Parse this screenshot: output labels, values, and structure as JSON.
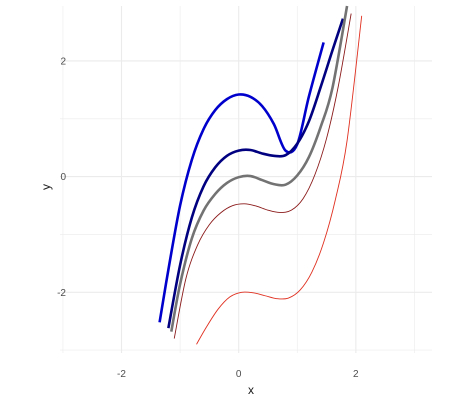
{
  "chart_data": {
    "type": "line",
    "title": "",
    "xlabel": "x",
    "ylabel": "y",
    "xlim": [
      -3.05,
      3.3
    ],
    "ylim": [
      -3.05,
      2.95
    ],
    "x_ticks": [
      -2,
      0,
      2
    ],
    "y_ticks": [
      -2,
      0,
      2
    ],
    "x_tick_labels": [
      "-2",
      "0",
      "2"
    ],
    "y_tick_labels": [
      "-2",
      "0",
      "2"
    ],
    "grid": true,
    "legend": "none",
    "background": "#ffffff",
    "grid_color": "#ebebeb",
    "series": [
      {
        "color": "#0000CD",
        "stroke_width": 2.6,
        "x": [
          -1.35,
          -1.2,
          -1.0,
          -0.8,
          -0.6,
          -0.4,
          -0.2,
          0.0,
          0.2,
          0.4,
          0.6,
          0.8,
          1.0,
          1.2,
          1.45
        ],
        "y": [
          -2.52,
          -1.61,
          -0.5,
          0.29,
          0.82,
          1.15,
          1.34,
          1.42,
          1.38,
          1.22,
          0.91,
          0.45,
          0.56,
          1.39,
          2.32
        ]
      },
      {
        "color": "#000080",
        "stroke_width": 2.6,
        "x": [
          -1.2,
          -1.0,
          -0.8,
          -0.6,
          -0.4,
          -0.2,
          0.0,
          0.2,
          0.4,
          0.6,
          0.8,
          1.0,
          1.2,
          1.4,
          1.6,
          1.78
        ],
        "y": [
          -2.62,
          -1.53,
          -0.71,
          -0.17,
          0.16,
          0.36,
          0.45,
          0.46,
          0.4,
          0.36,
          0.37,
          0.57,
          0.96,
          1.55,
          2.18,
          2.73
        ]
      },
      {
        "color": "#737373",
        "stroke_width": 2.6,
        "x": [
          -1.15,
          -1.0,
          -0.8,
          -0.6,
          -0.4,
          -0.2,
          0.0,
          0.2,
          0.4,
          0.6,
          0.8,
          1.0,
          1.2,
          1.4,
          1.6,
          1.85
        ],
        "y": [
          -2.68,
          -1.86,
          -1.07,
          -0.59,
          -0.3,
          -0.11,
          -0.01,
          0.01,
          -0.06,
          -0.13,
          -0.14,
          0.02,
          0.34,
          0.86,
          1.53,
          2.95
        ]
      },
      {
        "color": "#8B1A1A",
        "stroke_width": 0.9,
        "x": [
          -1.1,
          -0.9,
          -0.7,
          -0.5,
          -0.3,
          -0.1,
          0.1,
          0.3,
          0.5,
          0.7,
          0.9,
          1.1,
          1.3,
          1.5,
          1.7,
          1.92
        ],
        "y": [
          -2.8,
          -1.76,
          -1.18,
          -0.83,
          -0.62,
          -0.5,
          -0.47,
          -0.51,
          -0.58,
          -0.62,
          -0.58,
          -0.38,
          0.03,
          0.66,
          1.56,
          2.82
        ]
      },
      {
        "color": "#E03020",
        "stroke_width": 0.9,
        "x": [
          -0.72,
          -0.55,
          -0.35,
          -0.15,
          0.05,
          0.25,
          0.45,
          0.65,
          0.85,
          1.05,
          1.25,
          1.45,
          1.65,
          1.85,
          2.1
        ],
        "y": [
          -2.9,
          -2.6,
          -2.29,
          -2.08,
          -2.0,
          -2.01,
          -2.06,
          -2.11,
          -2.1,
          -1.96,
          -1.65,
          -1.14,
          -0.4,
          0.62,
          2.78
        ]
      }
    ]
  }
}
